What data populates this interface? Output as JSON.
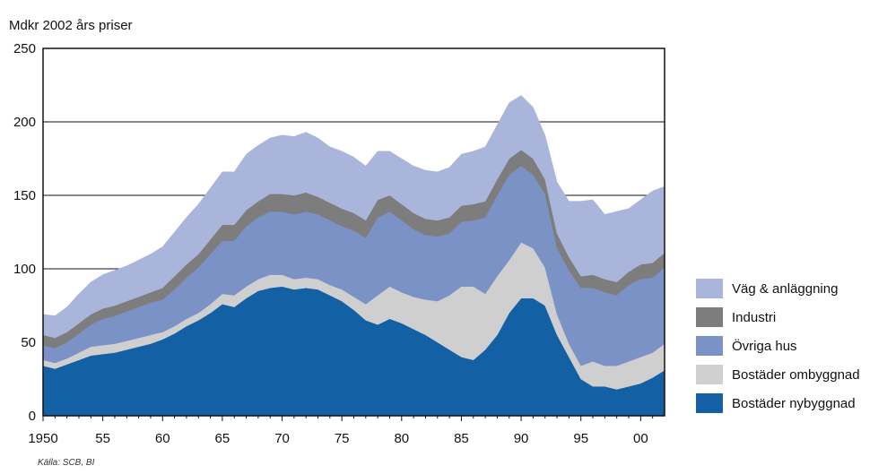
{
  "chart_data": {
    "type": "area",
    "stacked": true,
    "ylabel": "Mdkr 2002 års priser",
    "source": "Källa: SCB, BI",
    "ylim": [
      0,
      250
    ],
    "xlim": [
      1950,
      2002
    ],
    "yticks": [
      0,
      50,
      100,
      150,
      200,
      250
    ],
    "xticks": [
      {
        "value": 1950,
        "label": "1950"
      },
      {
        "value": 1955,
        "label": "55"
      },
      {
        "value": 1960,
        "label": "60"
      },
      {
        "value": 1965,
        "label": "65"
      },
      {
        "value": 1970,
        "label": "70"
      },
      {
        "value": 1975,
        "label": "75"
      },
      {
        "value": 1980,
        "label": "80"
      },
      {
        "value": 1985,
        "label": "85"
      },
      {
        "value": 1990,
        "label": "90"
      },
      {
        "value": 1995,
        "label": "95"
      },
      {
        "value": 2000,
        "label": "00"
      }
    ],
    "grid": "horizontal",
    "legend_position": "right",
    "x": [
      1950,
      1951,
      1952,
      1953,
      1954,
      1955,
      1956,
      1957,
      1958,
      1959,
      1960,
      1961,
      1962,
      1963,
      1964,
      1965,
      1966,
      1967,
      1968,
      1969,
      1970,
      1971,
      1972,
      1973,
      1974,
      1975,
      1976,
      1977,
      1978,
      1979,
      1980,
      1981,
      1982,
      1983,
      1984,
      1985,
      1986,
      1987,
      1988,
      1989,
      1990,
      1991,
      1992,
      1993,
      1994,
      1995,
      1996,
      1997,
      1998,
      1999,
      2000,
      2001,
      2002
    ],
    "series": [
      {
        "name": "Bostäder nybyggnad",
        "color": "#1460a5",
        "values": [
          34,
          32,
          35,
          38,
          41,
          42,
          43,
          45,
          47,
          49,
          52,
          56,
          61,
          65,
          70,
          76,
          74,
          80,
          85,
          87,
          88,
          86,
          87,
          86,
          82,
          78,
          72,
          65,
          62,
          66,
          63,
          59,
          55,
          50,
          45,
          40,
          38,
          45,
          55,
          70,
          80,
          80,
          75,
          55,
          40,
          25,
          20,
          20,
          18,
          20,
          22,
          26,
          31
        ]
      },
      {
        "name": "Bostäder ombyggnad",
        "color": "#cfcfcf",
        "values": [
          4,
          4,
          4,
          5,
          6,
          6,
          6,
          6,
          6,
          6,
          5,
          5,
          5,
          5,
          6,
          7,
          8,
          8,
          8,
          9,
          8,
          7,
          7,
          7,
          7,
          8,
          9,
          11,
          20,
          22,
          21,
          22,
          24,
          28,
          37,
          48,
          50,
          38,
          40,
          36,
          38,
          34,
          26,
          14,
          9,
          9,
          17,
          14,
          16,
          17,
          18,
          17,
          18
        ]
      },
      {
        "name": "Övriga hus",
        "color": "#7b92c6",
        "values": [
          10,
          10,
          11,
          13,
          15,
          18,
          19,
          20,
          21,
          22,
          22,
          25,
          28,
          31,
          34,
          36,
          37,
          41,
          42,
          43,
          43,
          44,
          45,
          44,
          44,
          43,
          45,
          45,
          53,
          51,
          49,
          46,
          44,
          44,
          42,
          44,
          45,
          52,
          55,
          58,
          52,
          50,
          50,
          45,
          50,
          53,
          50,
          50,
          48,
          52,
          53,
          51,
          52
        ]
      },
      {
        "name": "Industri",
        "color": "#7d7d7d",
        "values": [
          7,
          7,
          7,
          7,
          7,
          7,
          7,
          7,
          7,
          7,
          8,
          9,
          9,
          9,
          10,
          11,
          11,
          11,
          11,
          12,
          12,
          13,
          13,
          12,
          12,
          12,
          12,
          12,
          12,
          11,
          11,
          11,
          11,
          11,
          11,
          11,
          11,
          11,
          11,
          11,
          11,
          11,
          10,
          10,
          9,
          8,
          9,
          9,
          9,
          9,
          10,
          10,
          10
        ]
      },
      {
        "name": "Väg & anläggning",
        "color": "#a9b5db",
        "values": [
          14,
          15,
          17,
          20,
          22,
          23,
          24,
          24,
          25,
          26,
          28,
          30,
          32,
          34,
          35,
          36,
          36,
          38,
          38,
          38,
          40,
          40,
          41,
          40,
          38,
          39,
          38,
          37,
          33,
          30,
          31,
          32,
          33,
          33,
          34,
          35,
          36,
          37,
          37,
          38,
          37,
          35,
          30,
          35,
          38,
          51,
          51,
          44,
          48,
          43,
          44,
          49,
          45
        ]
      }
    ]
  }
}
